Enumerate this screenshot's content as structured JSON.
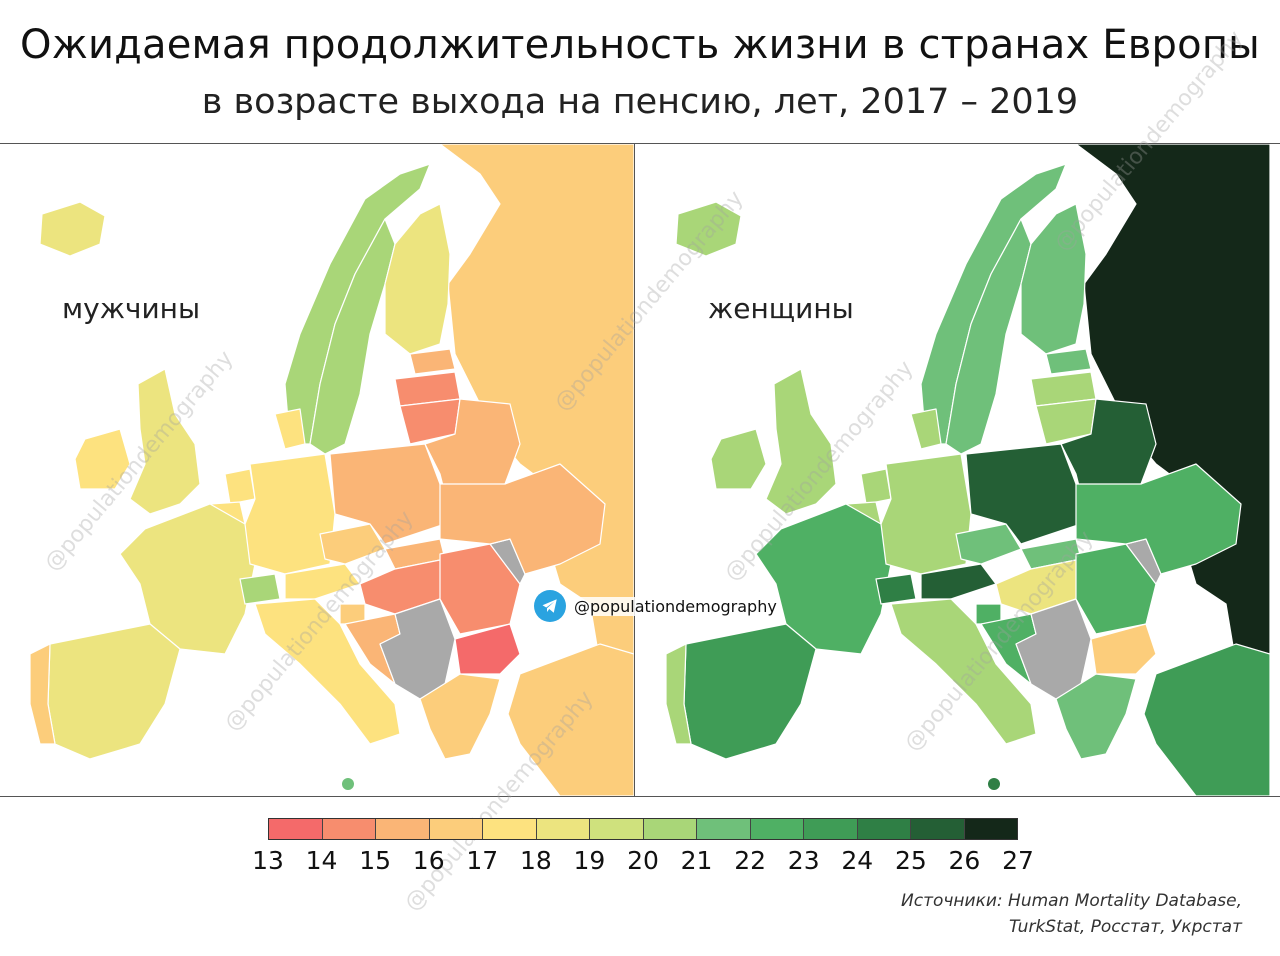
{
  "title": "Ожидаемая продолжительность жизни в странах Европы",
  "subtitle": "в возрасте выхода на пенсию, лет, 2017 – 2019",
  "panels": {
    "men": {
      "label": "мужчины",
      "countries": {
        "iceland": 18,
        "norway": 20,
        "sweden": 20,
        "finland": 18,
        "uk": 18,
        "ireland": 17,
        "denmark": 17,
        "netherlands": 17,
        "belgium": 17,
        "france": 18,
        "spain": 18,
        "portugal": 16,
        "switzerland": 20,
        "germany": 17,
        "austria": 17,
        "italy": 17,
        "czechia": 16,
        "poland": 15,
        "slovakia": 15,
        "hungary": 14,
        "slovenia": 16,
        "croatia": 15,
        "romania": 14,
        "bulgaria": 13,
        "greece": 16,
        "estonia": 15,
        "latvia": 14,
        "lithuania": 14,
        "belarus": 15,
        "ukraine": 15,
        "russia": 16,
        "turkey": 16
      }
    },
    "women": {
      "label": "женщины",
      "countries": {
        "iceland": 20,
        "norway": 21,
        "sweden": 21,
        "finland": 21,
        "uk": 20,
        "ireland": 20,
        "denmark": 20,
        "netherlands": 20,
        "belgium": 20,
        "france": 22,
        "spain": 23,
        "portugal": 20,
        "switzerland": 24,
        "germany": 20,
        "austria": 25,
        "italy": 20,
        "czechia": 21,
        "poland": 25,
        "slovakia": 21,
        "hungary": 18,
        "slovenia": 22,
        "croatia": 22,
        "romania": 22,
        "bulgaria": 16,
        "greece": 21,
        "estonia": 21,
        "latvia": 20,
        "lithuania": 20,
        "belarus": 25,
        "ukraine": 22,
        "russia": 27,
        "turkey": 23
      }
    }
  },
  "telegram_handle": "@populationdemography",
  "watermark_text": "@populationdemography",
  "legend": {
    "ticks": [
      "13",
      "14",
      "15",
      "16",
      "17",
      "18",
      "19",
      "20",
      "21",
      "22",
      "23",
      "24",
      "25",
      "26",
      "27"
    ],
    "colors": [
      "#f46a6a",
      "#f78d6e",
      "#fab576",
      "#fccd7b",
      "#fde27f",
      "#ece47f",
      "#cfe17d",
      "#a9d678",
      "#6fc07a",
      "#4fb064",
      "#3f9c56",
      "#2f7f45",
      "#245f35",
      "#142819"
    ],
    "no_data_color": "#a9a9a9"
  },
  "sources": {
    "line1": "Источники:  Human Mortality Database,",
    "line2": "TurkStat, Росстат, Укрстат"
  }
}
